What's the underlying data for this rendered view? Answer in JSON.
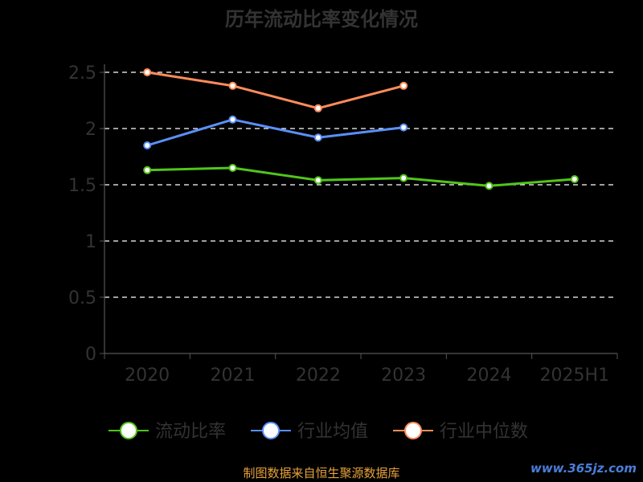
{
  "chart_data": {
    "type": "line",
    "title": "历年流动比率变化情况",
    "categories": [
      "2020",
      "2021",
      "2022",
      "2023",
      "2024",
      "2025H1"
    ],
    "ylim": [
      0,
      2.5
    ],
    "yticks": [
      "0",
      "0.5",
      "1",
      "1.5",
      "2",
      "2.5"
    ],
    "grid": true,
    "legend_position": "bottom",
    "series": [
      {
        "name": "流动比率",
        "color": "#52c41a",
        "values": [
          1.63,
          1.65,
          1.54,
          1.56,
          1.49,
          1.55
        ]
      },
      {
        "name": "行业均值",
        "color": "#5b8ff9",
        "values": [
          1.85,
          2.08,
          1.92,
          2.01,
          null,
          null
        ]
      },
      {
        "name": "行业中位数",
        "color": "#ff8c5a",
        "values": [
          2.5,
          2.38,
          2.18,
          2.38,
          null,
          null
        ]
      }
    ]
  },
  "footer": {
    "source": "制图数据来自恒生聚源数据库",
    "watermark": "www.365jz.com"
  }
}
